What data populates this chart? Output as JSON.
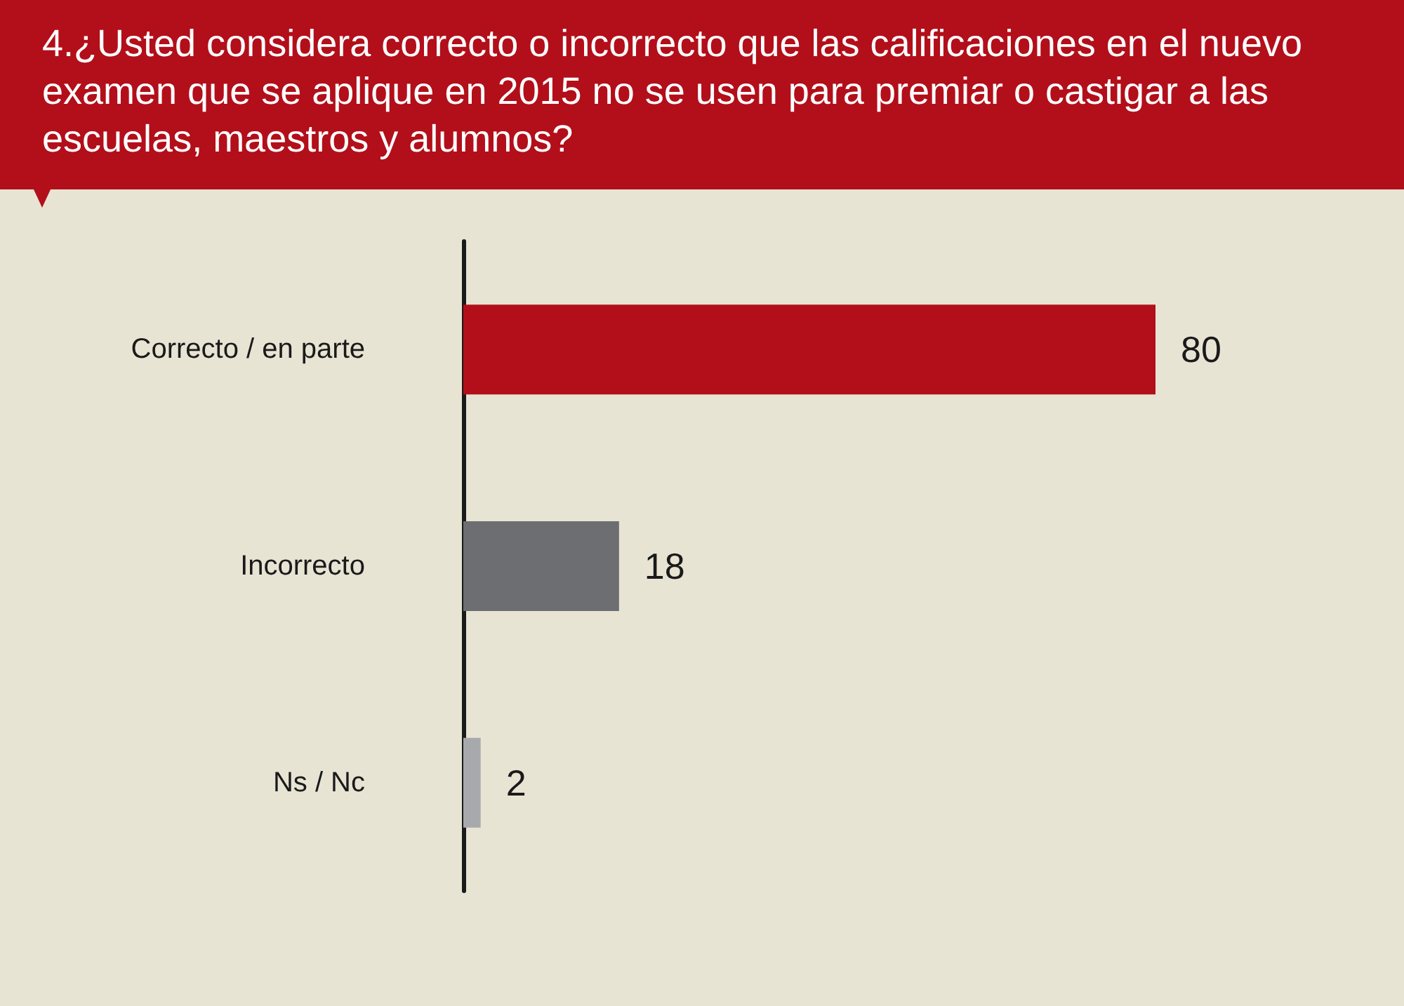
{
  "chart_data": {
    "type": "bar",
    "orientation": "horizontal",
    "title": "4.¿Usted considera correcto o incorrecto que las calificaciones en el nuevo examen que se aplique en 2015 no se usen para premiar o castigar a las escuelas, maestros y alumnos?",
    "categories": [
      "Correcto / en parte",
      "Incorrecto",
      "Ns / Nc"
    ],
    "values": [
      80,
      18,
      2
    ],
    "colors": [
      "#b20f1a",
      "#6d6e71",
      "#a7a9ac"
    ],
    "data_labels": true
  }
}
